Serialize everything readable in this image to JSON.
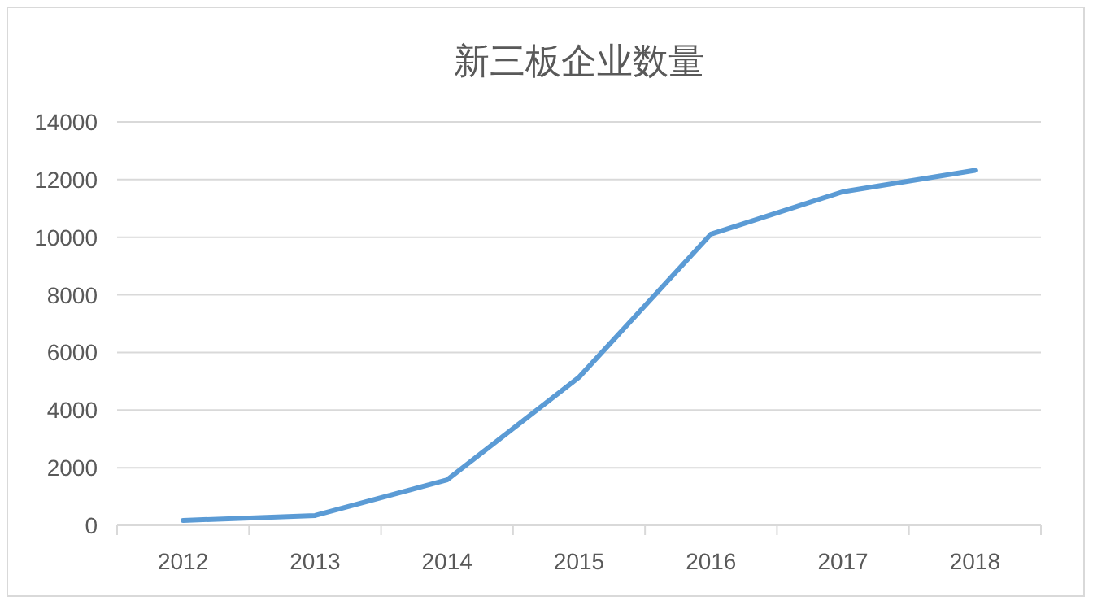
{
  "chart_data": {
    "type": "line",
    "title": "新三板企业数量",
    "categories": [
      "2012",
      "2013",
      "2014",
      "2015",
      "2016",
      "2017",
      "2018"
    ],
    "series": [
      {
        "color": "#5b9bd5",
        "values": [
          170,
          340,
          1580,
          5140,
          10110,
          11580,
          12320
        ]
      }
    ],
    "ylim": [
      0,
      14000
    ],
    "yticks": [
      0,
      2000,
      4000,
      6000,
      8000,
      10000,
      12000,
      14000
    ],
    "grid": "y"
  }
}
